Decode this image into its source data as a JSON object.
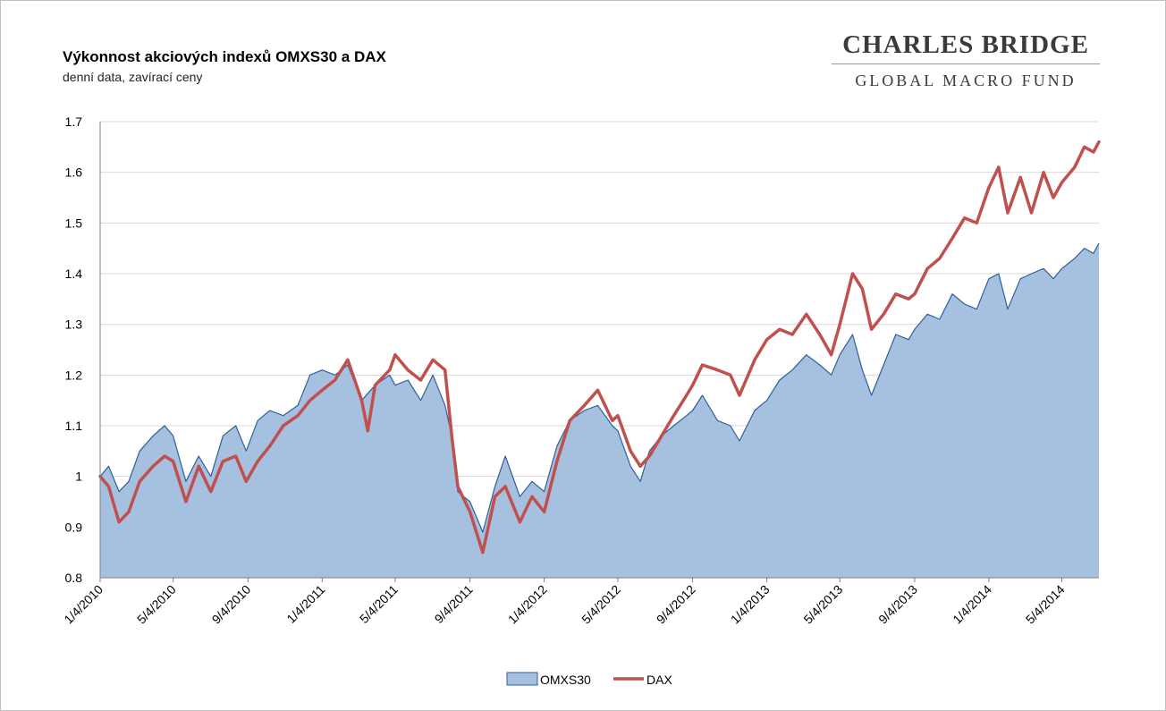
{
  "chart_data": {
    "type": "line",
    "title": "Výkonnost akciových indexů OMXS30 a DAX",
    "subtitle": "denní data, zavírací ceny",
    "xlabel": "",
    "ylabel": "",
    "ylim": [
      0.8,
      1.7
    ],
    "yticks": [
      "0.8",
      "0.9",
      "1",
      "1.1",
      "1.2",
      "1.3",
      "1.4",
      "1.5",
      "1.6",
      "1.7"
    ],
    "grid": true,
    "legend_position": "bottom",
    "x_start": "1/4/2010",
    "x_end": "7/4/2014",
    "xtick_labels": [
      "1/4/2010",
      "5/4/2010",
      "9/4/2010",
      "1/4/2011",
      "5/4/2011",
      "9/4/2011",
      "1/4/2012",
      "5/4/2012",
      "9/4/2012",
      "1/4/2013",
      "5/4/2013",
      "9/4/2013",
      "1/4/2014",
      "5/4/2014"
    ],
    "series": [
      {
        "name": "OMXS30",
        "style": "area",
        "color": "#a6c1e0",
        "edge_color": "#2f5e9a",
        "points": [
          [
            "1/4/2010",
            1.0
          ],
          [
            "1/18/2010",
            1.02
          ],
          [
            "2/4/2010",
            0.97
          ],
          [
            "2/20/2010",
            0.99
          ],
          [
            "3/10/2010",
            1.05
          ],
          [
            "4/1/2010",
            1.08
          ],
          [
            "4/20/2010",
            1.1
          ],
          [
            "5/4/2010",
            1.08
          ],
          [
            "5/25/2010",
            0.99
          ],
          [
            "6/15/2010",
            1.04
          ],
          [
            "7/5/2010",
            1.0
          ],
          [
            "7/25/2010",
            1.08
          ],
          [
            "8/15/2010",
            1.1
          ],
          [
            "9/1/2010",
            1.05
          ],
          [
            "9/20/2010",
            1.11
          ],
          [
            "10/10/2010",
            1.13
          ],
          [
            "11/1/2010",
            1.12
          ],
          [
            "11/25/2010",
            1.14
          ],
          [
            "12/15/2010",
            1.2
          ],
          [
            "1/4/2011",
            1.21
          ],
          [
            "1/25/2011",
            1.2
          ],
          [
            "2/15/2011",
            1.22
          ],
          [
            "3/10/2011",
            1.15
          ],
          [
            "4/1/2011",
            1.18
          ],
          [
            "4/25/2011",
            1.2
          ],
          [
            "5/4/2011",
            1.18
          ],
          [
            "5/25/2011",
            1.19
          ],
          [
            "6/15/2011",
            1.15
          ],
          [
            "7/5/2011",
            1.2
          ],
          [
            "7/25/2011",
            1.14
          ],
          [
            "8/5/2011",
            1.08
          ],
          [
            "8/15/2011",
            0.97
          ],
          [
            "9/4/2011",
            0.95
          ],
          [
            "9/25/2011",
            0.89
          ],
          [
            "10/15/2011",
            0.98
          ],
          [
            "11/1/2011",
            1.04
          ],
          [
            "11/25/2011",
            0.96
          ],
          [
            "12/15/2011",
            0.99
          ],
          [
            "1/4/2012",
            0.97
          ],
          [
            "1/25/2012",
            1.06
          ],
          [
            "2/15/2012",
            1.11
          ],
          [
            "3/10/2012",
            1.13
          ],
          [
            "4/1/2012",
            1.14
          ],
          [
            "4/25/2012",
            1.1
          ],
          [
            "5/4/2012",
            1.09
          ],
          [
            "5/25/2012",
            1.02
          ],
          [
            "6/10/2012",
            0.99
          ],
          [
            "6/25/2012",
            1.05
          ],
          [
            "7/15/2012",
            1.08
          ],
          [
            "8/4/2012",
            1.1
          ],
          [
            "8/25/2012",
            1.12
          ],
          [
            "9/4/2012",
            1.13
          ],
          [
            "9/20/2012",
            1.16
          ],
          [
            "10/15/2012",
            1.11
          ],
          [
            "11/5/2012",
            1.1
          ],
          [
            "11/20/2012",
            1.07
          ],
          [
            "12/15/2012",
            1.13
          ],
          [
            "1/4/2013",
            1.15
          ],
          [
            "1/25/2013",
            1.19
          ],
          [
            "2/15/2013",
            1.21
          ],
          [
            "3/10/2013",
            1.24
          ],
          [
            "4/1/2013",
            1.22
          ],
          [
            "4/20/2013",
            1.2
          ],
          [
            "5/4/2013",
            1.24
          ],
          [
            "5/25/2013",
            1.28
          ],
          [
            "6/10/2013",
            1.21
          ],
          [
            "6/25/2013",
            1.16
          ],
          [
            "7/15/2013",
            1.22
          ],
          [
            "8/4/2013",
            1.28
          ],
          [
            "8/25/2013",
            1.27
          ],
          [
            "9/4/2013",
            1.29
          ],
          [
            "9/25/2013",
            1.32
          ],
          [
            "10/15/2013",
            1.31
          ],
          [
            "11/5/2013",
            1.36
          ],
          [
            "11/25/2013",
            1.34
          ],
          [
            "12/15/2013",
            1.33
          ],
          [
            "1/4/2014",
            1.39
          ],
          [
            "1/20/2014",
            1.4
          ],
          [
            "2/4/2014",
            1.33
          ],
          [
            "2/25/2014",
            1.39
          ],
          [
            "3/15/2014",
            1.4
          ],
          [
            "4/4/2014",
            1.41
          ],
          [
            "4/20/2014",
            1.39
          ],
          [
            "5/4/2014",
            1.41
          ],
          [
            "5/25/2014",
            1.43
          ],
          [
            "6/10/2014",
            1.45
          ],
          [
            "6/25/2014",
            1.44
          ],
          [
            "7/4/2014",
            1.46
          ]
        ]
      },
      {
        "name": "DAX",
        "style": "line",
        "color": "#c0504d",
        "points": [
          [
            "1/4/2010",
            1.0
          ],
          [
            "1/18/2010",
            0.98
          ],
          [
            "2/4/2010",
            0.91
          ],
          [
            "2/20/2010",
            0.93
          ],
          [
            "3/10/2010",
            0.99
          ],
          [
            "4/1/2010",
            1.02
          ],
          [
            "4/20/2010",
            1.04
          ],
          [
            "5/4/2010",
            1.03
          ],
          [
            "5/25/2010",
            0.95
          ],
          [
            "6/15/2010",
            1.02
          ],
          [
            "7/5/2010",
            0.97
          ],
          [
            "7/25/2010",
            1.03
          ],
          [
            "8/15/2010",
            1.04
          ],
          [
            "9/1/2010",
            0.99
          ],
          [
            "9/20/2010",
            1.03
          ],
          [
            "10/10/2010",
            1.06
          ],
          [
            "11/1/2010",
            1.1
          ],
          [
            "11/25/2010",
            1.12
          ],
          [
            "12/15/2010",
            1.15
          ],
          [
            "1/4/2011",
            1.17
          ],
          [
            "1/25/2011",
            1.19
          ],
          [
            "2/15/2011",
            1.23
          ],
          [
            "3/10/2011",
            1.15
          ],
          [
            "3/20/2011",
            1.09
          ],
          [
            "4/1/2011",
            1.18
          ],
          [
            "4/25/2011",
            1.21
          ],
          [
            "5/4/2011",
            1.24
          ],
          [
            "5/25/2011",
            1.21
          ],
          [
            "6/15/2011",
            1.19
          ],
          [
            "7/5/2011",
            1.23
          ],
          [
            "7/25/2011",
            1.21
          ],
          [
            "8/5/2011",
            1.08
          ],
          [
            "8/15/2011",
            0.98
          ],
          [
            "9/4/2011",
            0.93
          ],
          [
            "9/25/2011",
            0.85
          ],
          [
            "10/15/2011",
            0.96
          ],
          [
            "11/1/2011",
            0.98
          ],
          [
            "11/25/2011",
            0.91
          ],
          [
            "12/15/2011",
            0.96
          ],
          [
            "1/4/2012",
            0.93
          ],
          [
            "1/25/2012",
            1.03
          ],
          [
            "2/15/2012",
            1.11
          ],
          [
            "3/10/2012",
            1.14
          ],
          [
            "4/1/2012",
            1.17
          ],
          [
            "4/25/2012",
            1.11
          ],
          [
            "5/4/2012",
            1.12
          ],
          [
            "5/25/2012",
            1.05
          ],
          [
            "6/10/2012",
            1.02
          ],
          [
            "6/25/2012",
            1.04
          ],
          [
            "7/15/2012",
            1.08
          ],
          [
            "8/4/2012",
            1.12
          ],
          [
            "8/25/2012",
            1.16
          ],
          [
            "9/4/2012",
            1.18
          ],
          [
            "9/20/2012",
            1.22
          ],
          [
            "10/15/2012",
            1.21
          ],
          [
            "11/5/2012",
            1.2
          ],
          [
            "11/20/2012",
            1.16
          ],
          [
            "12/15/2012",
            1.23
          ],
          [
            "1/4/2013",
            1.27
          ],
          [
            "1/25/2013",
            1.29
          ],
          [
            "2/15/2013",
            1.28
          ],
          [
            "3/10/2013",
            1.32
          ],
          [
            "4/1/2013",
            1.28
          ],
          [
            "4/20/2013",
            1.24
          ],
          [
            "5/4/2013",
            1.3
          ],
          [
            "5/25/2013",
            1.4
          ],
          [
            "6/10/2013",
            1.37
          ],
          [
            "6/25/2013",
            1.29
          ],
          [
            "7/15/2013",
            1.32
          ],
          [
            "8/4/2013",
            1.36
          ],
          [
            "8/25/2013",
            1.35
          ],
          [
            "9/4/2013",
            1.36
          ],
          [
            "9/25/2013",
            1.41
          ],
          [
            "10/15/2013",
            1.43
          ],
          [
            "11/5/2013",
            1.47
          ],
          [
            "11/25/2013",
            1.51
          ],
          [
            "12/15/2013",
            1.5
          ],
          [
            "1/4/2014",
            1.57
          ],
          [
            "1/20/2014",
            1.61
          ],
          [
            "2/4/2014",
            1.52
          ],
          [
            "2/25/2014",
            1.59
          ],
          [
            "3/15/2014",
            1.52
          ],
          [
            "4/4/2014",
            1.6
          ],
          [
            "4/20/2014",
            1.55
          ],
          [
            "5/4/2014",
            1.58
          ],
          [
            "5/25/2014",
            1.61
          ],
          [
            "6/10/2014",
            1.65
          ],
          [
            "6/25/2014",
            1.64
          ],
          [
            "7/4/2014",
            1.66
          ]
        ]
      }
    ]
  },
  "logo": {
    "line1": "CHARLES BRIDGE",
    "line2": "GLOBAL MACRO FUND",
    "color": "#3a3a3a"
  }
}
